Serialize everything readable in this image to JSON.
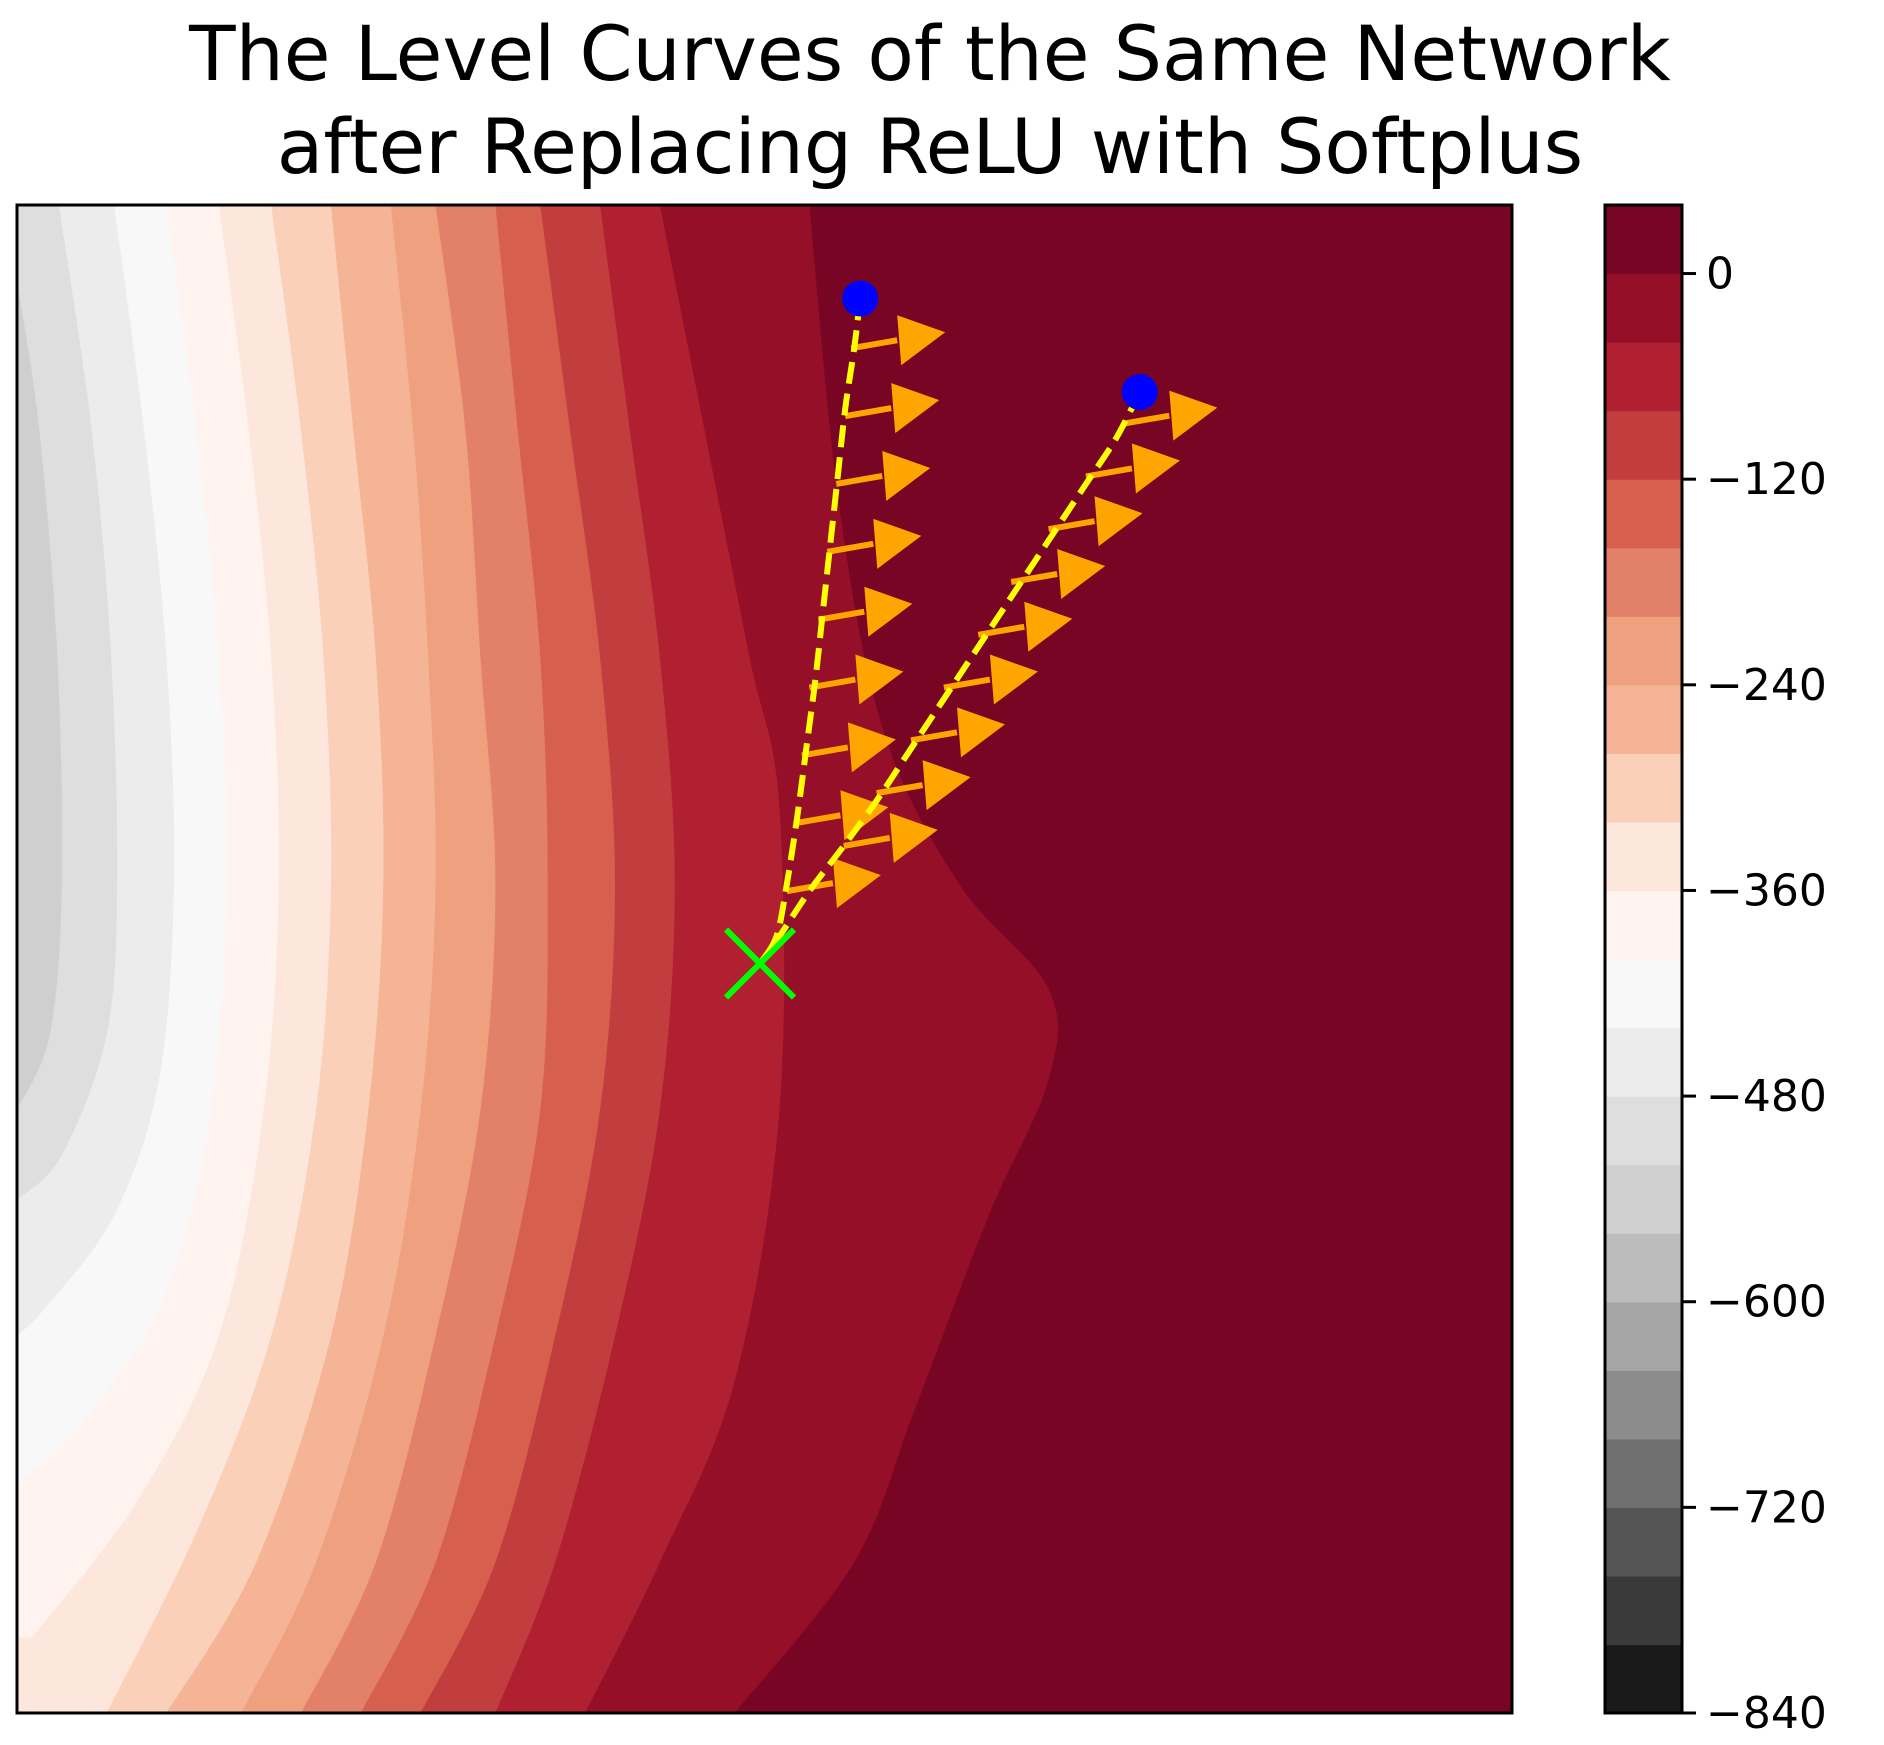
{
  "chart_data": {
    "type": "contour",
    "title_lines": [
      "The Level Curves of the Same Network",
      "after Replacing ReLU with Softplus"
    ],
    "xlabel": "",
    "ylabel": "",
    "x_range": [
      0,
      1
    ],
    "y_range": [
      0,
      1
    ],
    "show_axis_ticks": false,
    "colormap": "RdGy_r",
    "colorbar": {
      "range": [
        -840,
        40
      ],
      "levels": [
        -840,
        -800,
        -760,
        -720,
        -680,
        -640,
        -600,
        -560,
        -520,
        -480,
        -440,
        -400,
        -360,
        -320,
        -280,
        -240,
        -200,
        -160,
        -120,
        -80,
        -40,
        0,
        40
      ],
      "colors": [
        "#1a1a1a",
        "#3a3a3a",
        "#555555",
        "#707070",
        "#8c8c8c",
        "#a6a6a6",
        "#bcbcbc",
        "#cfcfcf",
        "#dedede",
        "#ececec",
        "#f8f8f8",
        "#fff3ef",
        "#fde6dc",
        "#fbd0b9",
        "#f5b495",
        "#eea07f",
        "#e3806a",
        "#d6604d",
        "#c23d3e",
        "#b12030",
        "#960f29",
        "#780523"
      ],
      "tick_values": [
        0,
        -120,
        -240,
        -360,
        -480,
        -600,
        -720,
        -840
      ],
      "tick_labels": [
        "0",
        "−120",
        "−240",
        "−360",
        "−480",
        "−600",
        "−720",
        "−840"
      ],
      "position": "right"
    },
    "contour_boundaries": [
      {
        "upper_level": 0,
        "points": [
          [
            0.53,
            1.0
          ],
          [
            0.55,
            0.8
          ],
          [
            0.58,
            0.65
          ],
          [
            0.63,
            0.55
          ],
          [
            0.69,
            0.48
          ],
          [
            0.69,
            0.42
          ],
          [
            0.65,
            0.33
          ],
          [
            0.6,
            0.2
          ],
          [
            0.56,
            0.1
          ],
          [
            0.48,
            0.0
          ]
        ]
      },
      {
        "upper_level": -40,
        "points": [
          [
            0.43,
            1.0
          ],
          [
            0.46,
            0.85
          ],
          [
            0.49,
            0.7
          ],
          [
            0.51,
            0.6
          ],
          [
            0.51,
            0.4
          ],
          [
            0.48,
            0.22
          ],
          [
            0.43,
            0.1
          ],
          [
            0.38,
            0.0
          ]
        ]
      },
      {
        "upper_level": -80,
        "points": [
          [
            0.39,
            1.0
          ],
          [
            0.41,
            0.85
          ],
          [
            0.43,
            0.7
          ],
          [
            0.44,
            0.55
          ],
          [
            0.43,
            0.4
          ],
          [
            0.4,
            0.25
          ],
          [
            0.36,
            0.1
          ],
          [
            0.32,
            0.0
          ]
        ]
      },
      {
        "upper_level": -120,
        "points": [
          [
            0.35,
            1.0
          ],
          [
            0.37,
            0.85
          ],
          [
            0.39,
            0.7
          ],
          [
            0.4,
            0.55
          ],
          [
            0.39,
            0.4
          ],
          [
            0.36,
            0.25
          ],
          [
            0.32,
            0.1
          ],
          [
            0.27,
            0.0
          ]
        ]
      },
      {
        "upper_level": -160,
        "points": [
          [
            0.32,
            1.0
          ],
          [
            0.335,
            0.85
          ],
          [
            0.35,
            0.7
          ],
          [
            0.355,
            0.55
          ],
          [
            0.35,
            0.4
          ],
          [
            0.32,
            0.25
          ],
          [
            0.28,
            0.1
          ],
          [
            0.23,
            0.0
          ]
        ]
      },
      {
        "upper_level": -200,
        "points": [
          [
            0.28,
            1.0
          ],
          [
            0.3,
            0.85
          ],
          [
            0.31,
            0.7
          ],
          [
            0.32,
            0.55
          ],
          [
            0.31,
            0.4
          ],
          [
            0.28,
            0.25
          ],
          [
            0.24,
            0.1
          ],
          [
            0.19,
            0.0
          ]
        ]
      },
      {
        "upper_level": -240,
        "points": [
          [
            0.25,
            1.0
          ],
          [
            0.265,
            0.85
          ],
          [
            0.275,
            0.7
          ],
          [
            0.28,
            0.55
          ],
          [
            0.27,
            0.4
          ],
          [
            0.245,
            0.25
          ],
          [
            0.2,
            0.1
          ],
          [
            0.15,
            0.0
          ]
        ]
      },
      {
        "upper_level": -280,
        "points": [
          [
            0.21,
            1.0
          ],
          [
            0.225,
            0.85
          ],
          [
            0.24,
            0.7
          ],
          [
            0.245,
            0.55
          ],
          [
            0.235,
            0.4
          ],
          [
            0.21,
            0.25
          ],
          [
            0.16,
            0.1
          ],
          [
            0.1,
            0.0
          ]
        ]
      },
      {
        "upper_level": -320,
        "points": [
          [
            0.17,
            1.0
          ],
          [
            0.19,
            0.85
          ],
          [
            0.205,
            0.7
          ],
          [
            0.21,
            0.55
          ],
          [
            0.2,
            0.4
          ],
          [
            0.17,
            0.25
          ],
          [
            0.12,
            0.12
          ],
          [
            0.06,
            0.0
          ]
        ]
      },
      {
        "upper_level": -360,
        "points": [
          [
            0.135,
            1.0
          ],
          [
            0.155,
            0.85
          ],
          [
            0.17,
            0.7
          ],
          [
            0.175,
            0.55
          ],
          [
            0.165,
            0.4
          ],
          [
            0.135,
            0.25
          ],
          [
            0.08,
            0.14
          ],
          [
            0.01,
            0.05
          ]
        ]
      },
      {
        "upper_level": -400,
        "points": [
          [
            0.1,
            1.0
          ],
          [
            0.12,
            0.85
          ],
          [
            0.135,
            0.7
          ],
          [
            0.14,
            0.55
          ],
          [
            0.13,
            0.4
          ],
          [
            0.1,
            0.28
          ],
          [
            0.05,
            0.2
          ],
          [
            0.0,
            0.15
          ]
        ]
      },
      {
        "upper_level": -440,
        "points": [
          [
            0.065,
            1.0
          ],
          [
            0.085,
            0.85
          ],
          [
            0.1,
            0.7
          ],
          [
            0.105,
            0.55
          ],
          [
            0.095,
            0.42
          ],
          [
            0.065,
            0.33
          ],
          [
            0.02,
            0.27
          ],
          [
            0.0,
            0.25
          ]
        ]
      },
      {
        "upper_level": -480,
        "points": [
          [
            0.028,
            1.0
          ],
          [
            0.05,
            0.85
          ],
          [
            0.063,
            0.7
          ],
          [
            0.067,
            0.55
          ],
          [
            0.06,
            0.45
          ],
          [
            0.03,
            0.37
          ],
          [
            0.0,
            0.34
          ]
        ]
      },
      {
        "upper_level": -520,
        "points": [
          [
            0.0,
            0.95
          ],
          [
            0.015,
            0.85
          ],
          [
            0.027,
            0.7
          ],
          [
            0.03,
            0.55
          ],
          [
            0.022,
            0.45
          ],
          [
            0.0,
            0.4
          ]
        ]
      }
    ],
    "trajectories": [
      {
        "start": [
          0.564,
          0.938
        ],
        "end": [
          0.497,
          0.497
        ],
        "path": [
          [
            0.564,
            0.938
          ],
          [
            0.56,
            0.905
          ],
          [
            0.554,
            0.865
          ],
          [
            0.549,
            0.82
          ],
          [
            0.544,
            0.775
          ],
          [
            0.539,
            0.73
          ],
          [
            0.534,
            0.685
          ],
          [
            0.528,
            0.64
          ],
          [
            0.522,
            0.595
          ],
          [
            0.515,
            0.55
          ],
          [
            0.508,
            0.515
          ],
          [
            0.497,
            0.497
          ]
        ],
        "arrows": [
          [
            0.558,
            0.905
          ],
          [
            0.554,
            0.86
          ],
          [
            0.548,
            0.815
          ],
          [
            0.542,
            0.77
          ],
          [
            0.536,
            0.725
          ],
          [
            0.53,
            0.68
          ],
          [
            0.525,
            0.635
          ],
          [
            0.52,
            0.59
          ],
          [
            0.515,
            0.545
          ]
        ]
      },
      {
        "start": [
          0.751,
          0.876
        ],
        "end": [
          0.497,
          0.497
        ],
        "path": [
          [
            0.751,
            0.876
          ],
          [
            0.735,
            0.845
          ],
          [
            0.715,
            0.815
          ],
          [
            0.695,
            0.785
          ],
          [
            0.675,
            0.755
          ],
          [
            0.655,
            0.725
          ],
          [
            0.635,
            0.695
          ],
          [
            0.615,
            0.665
          ],
          [
            0.595,
            0.635
          ],
          [
            0.575,
            0.605
          ],
          [
            0.553,
            0.575
          ],
          [
            0.53,
            0.545
          ],
          [
            0.51,
            0.515
          ],
          [
            0.497,
            0.497
          ]
        ],
        "arrows": [
          [
            0.74,
            0.855
          ],
          [
            0.715,
            0.82
          ],
          [
            0.69,
            0.785
          ],
          [
            0.665,
            0.75
          ],
          [
            0.643,
            0.715
          ],
          [
            0.62,
            0.68
          ],
          [
            0.598,
            0.645
          ],
          [
            0.575,
            0.61
          ],
          [
            0.553,
            0.575
          ]
        ]
      }
    ],
    "target_marker": [
      0.497,
      0.497
    ],
    "colors": {
      "start_marker": "#0000ff",
      "trajectory_line": "#ffff00",
      "arrow": "#ffa500",
      "target_marker": "#00ff00",
      "frame": "#000000",
      "background_top_level": "#780523"
    },
    "grid": false,
    "legend": "none"
  }
}
